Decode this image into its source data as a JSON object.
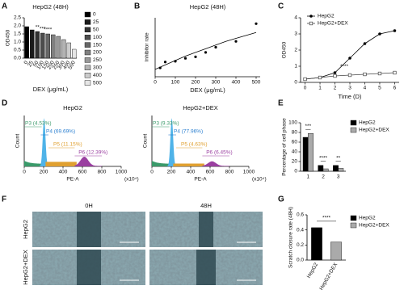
{
  "chart_data": [
    {
      "type": "bar",
      "label": "A",
      "title": "HepG2 (48H)",
      "xlabel": "DEX (μg/mL)",
      "ylabel": "OD450",
      "categories": [
        "0",
        "25",
        "50",
        "100",
        "150",
        "200",
        "250",
        "300",
        "400",
        "500"
      ],
      "values": [
        1.95,
        1.75,
        1.65,
        1.55,
        1.5,
        1.45,
        1.35,
        1.15,
        0.95,
        0.55
      ],
      "colors": [
        "#000000",
        "#1a1a1a",
        "#333333",
        "#4d4d4d",
        "#666666",
        "#808080",
        "#999999",
        "#b3b3b3",
        "#cccccc",
        "#e6e6e6"
      ],
      "significance": [
        null,
        null,
        "**",
        "***",
        "****",
        null,
        null,
        null,
        null,
        null
      ],
      "ylim": [
        0,
        2.5
      ],
      "yticks": [
        {
          "value": 0,
          "label": "0.0"
        },
        0.5,
        {
          "value": 1,
          "label": "1.0"
        },
        1.5,
        {
          "value": 2,
          "label": "2.0"
        },
        2.5
      ],
      "legend": true
    },
    {
      "type": "scatter",
      "label": "B",
      "title": "HepG2 (48H)",
      "xlabel": "DEX (μg/mL)",
      "ylabel": "Inhibitor rate",
      "x": [
        25,
        50,
        100,
        150,
        200,
        250,
        300,
        400,
        500
      ],
      "values": [
        0.12,
        0.2,
        0.21,
        0.25,
        0.27,
        0.33,
        0.4,
        0.48,
        0.72
      ],
      "fit": {
        "x": [
          0,
          50,
          100,
          150,
          200,
          250,
          300,
          350,
          400,
          450,
          500
        ],
        "values": [
          0.1,
          0.16,
          0.22,
          0.28,
          0.33,
          0.38,
          0.43,
          0.48,
          0.52,
          0.56,
          0.6
        ]
      },
      "color": "#000000",
      "xlim": [
        0,
        520
      ],
      "xticks": [
        0,
        100,
        200,
        300,
        400,
        500
      ],
      "ylim": [
        0,
        0.8
      ]
    },
    {
      "type": "line",
      "label": "C",
      "xlabel": "Time (D)",
      "ylabel": "OD450",
      "x": [
        0,
        1,
        2,
        3,
        4,
        5,
        6
      ],
      "series": [
        {
          "name": "HepG2",
          "color": "#000000",
          "marker": "circle",
          "values": [
            0.2,
            0.3,
            0.6,
            1.5,
            2.4,
            3.0,
            3.2
          ]
        },
        {
          "name": "HepG2+DEX",
          "color": "#444444",
          "marker": "square",
          "values": [
            0.2,
            0.3,
            0.4,
            0.45,
            0.5,
            0.55,
            0.6
          ]
        }
      ],
      "significance": [
        null,
        null,
        null,
        "****",
        null,
        null,
        null
      ],
      "xlim": [
        -0.3,
        6.3
      ],
      "xticks": [
        0,
        1,
        2,
        3,
        4,
        5,
        6
      ],
      "ylim": [
        0,
        4
      ],
      "yticks": [
        0,
        1,
        2,
        3,
        4
      ],
      "legend": true
    },
    {
      "type": "flow",
      "label": "D",
      "xlabel": "PE-A",
      "ylabel": "Count",
      "unit": "(x10⁴)",
      "xlim": [
        0,
        1000
      ],
      "xticks": [
        0,
        200,
        400,
        600,
        800,
        1000
      ],
      "plots": [
        {
          "title": "HepG2",
          "gates": [
            {
              "label": "P3 (4.53%)",
              "color": "#3a9a6a"
            },
            {
              "label": "P4 (69.69%)",
              "color": "#2a7fd0"
            },
            {
              "label": "P5 (11.15%)",
              "color": "#e0a030"
            },
            {
              "label": "P6 (12.39%)",
              "color": "#9a3fa0"
            }
          ]
        },
        {
          "title": "HepG2+DEX",
          "gates": [
            {
              "label": "P3 (9.33%)",
              "color": "#3a9a6a"
            },
            {
              "label": "P4 (77.96%)",
              "color": "#2a7fd0"
            },
            {
              "label": "P5 (4.63%)",
              "color": "#e0a030"
            },
            {
              "label": "P6 (6.45%)",
              "color": "#9a3fa0"
            }
          ]
        }
      ]
    },
    {
      "type": "grouped-bar",
      "label": "E",
      "ylabel": "Percentage of cell phase",
      "categories": [
        "1",
        "2",
        "3"
      ],
      "series": [
        {
          "name": "HepG2",
          "color": "#000000",
          "values": [
            70,
            12,
            12
          ]
        },
        {
          "name": "HepG2+DEX",
          "color": "#aaaaaa",
          "values": [
            78,
            5,
            6
          ]
        }
      ],
      "significance": [
        "***",
        "****",
        "**"
      ],
      "ylim": [
        0,
        100
      ],
      "yticks": [
        0,
        20,
        40,
        60,
        80,
        100
      ],
      "legend": true
    },
    {
      "type": "images",
      "label": "F",
      "columns": [
        "0H",
        "48H"
      ],
      "rows": [
        "HepG2",
        "HepG2+DEX"
      ]
    },
    {
      "type": "bar",
      "label": "G",
      "ylabel": "Scratch closure rate (48H)",
      "categories": [
        "HepG2",
        "HepG2+DEX"
      ],
      "values": [
        0.43,
        0.24
      ],
      "colors": [
        "#000000",
        "#aaaaaa"
      ],
      "significance": "****",
      "ylim": [
        0,
        0.6
      ],
      "yticks": [
        {
          "value": 0,
          "label": "0.0"
        },
        0.2,
        0.4,
        0.6
      ],
      "legend": true
    }
  ]
}
